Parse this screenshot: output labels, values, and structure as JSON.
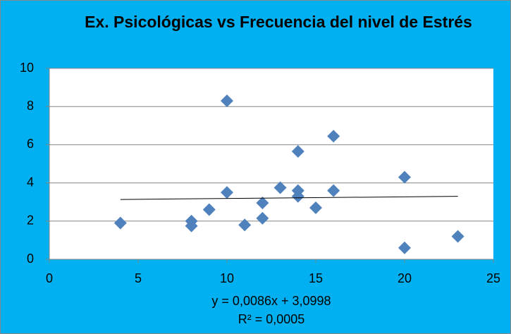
{
  "chart_data": {
    "type": "scatter",
    "title": "Ex. Psicológicas vs Frecuencia del nivel de Estrés",
    "x": [
      4,
      8,
      8,
      9,
      10,
      10,
      11,
      12,
      12,
      13,
      14,
      14,
      14,
      15,
      16,
      16,
      20,
      20,
      23
    ],
    "values": [
      1.9,
      2.0,
      1.75,
      2.6,
      8.3,
      3.5,
      1.8,
      2.95,
      2.15,
      3.75,
      5.65,
      3.6,
      3.3,
      2.7,
      6.45,
      3.6,
      4.3,
      0.6,
      1.2
    ],
    "color": "#4f81bd",
    "background": "#00b0f0",
    "xlim": [
      0,
      25
    ],
    "xticks": [
      0,
      5,
      10,
      15,
      20,
      25
    ],
    "ylim": [
      0,
      10
    ],
    "yticks": [
      0,
      2,
      4,
      6,
      8,
      10
    ],
    "grid": true,
    "trendline": {
      "slope": 0.0086,
      "intercept": 3.0998,
      "label": "y = 0,0086x + 3,0998",
      "r2": 0.0005,
      "r2_label": "R² = 0,0005"
    }
  }
}
